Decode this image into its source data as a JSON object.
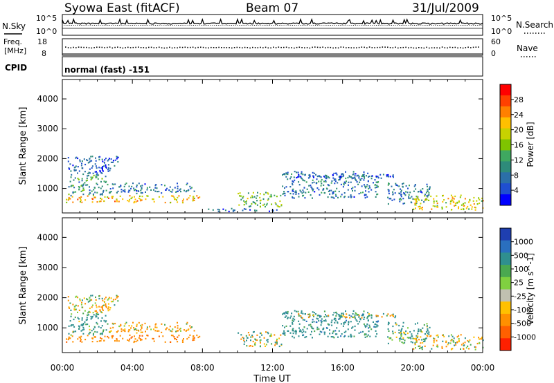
{
  "header": {
    "title": "Syowa East (fitACF)",
    "beam": "Beam 07",
    "date": "31/Jul/2009"
  },
  "top_panels": {
    "nsky_label": "N.Sky",
    "nsearch_label": "N.Search",
    "nsky_ticks": [
      "10^5",
      "10^0"
    ],
    "nsearch_ticks": [
      "10^5",
      "10^0"
    ],
    "freq_label_1": "Freq.",
    "freq_label_2": "[MHz]",
    "freq_ticks": [
      "18",
      "8"
    ],
    "nave_label": "Nave",
    "nave_ticks": [
      "60",
      "0"
    ],
    "cpid_label": "CPID",
    "cpid_value": "normal (fast) -151"
  },
  "chart_data": [
    {
      "type": "heatmap",
      "name": "power",
      "xlabel": "",
      "ylabel": "Slant Range [km]",
      "y_ticks": [
        "1000",
        "2000",
        "3000",
        "4000"
      ],
      "ylim": [
        180,
        4650
      ],
      "xlim_hours": [
        0,
        24
      ],
      "colorbar_label": "Power [dB]",
      "colorbar_ticks": [
        "28",
        "24",
        "20",
        "16",
        "12",
        "8",
        "4"
      ],
      "colorbar_colors": [
        "#ff0000",
        "#ff4000",
        "#ff8000",
        "#ffc000",
        "#c8d200",
        "#7fc400",
        "#3fa860",
        "#2e8b7a",
        "#2b6fa8",
        "#1f4fd0",
        "#0000ff"
      ],
      "clusters": [
        {
          "t": [
            0.2,
            7.8
          ],
          "r": [
            550,
            780
          ],
          "level": 22
        },
        {
          "t": [
            0.3,
            2.5
          ],
          "r": [
            780,
            1500
          ],
          "level": 12
        },
        {
          "t": [
            0.2,
            3.2
          ],
          "r": [
            1500,
            2100
          ],
          "level": 8
        },
        {
          "t": [
            2.5,
            7.5
          ],
          "r": [
            850,
            1200
          ],
          "level": 10
        },
        {
          "t": [
            8.0,
            12.5
          ],
          "r": [
            250,
            350
          ],
          "level": 8
        },
        {
          "t": [
            10.0,
            12.5
          ],
          "r": [
            400,
            900
          ],
          "level": 16
        },
        {
          "t": [
            12.5,
            18.0
          ],
          "r": [
            700,
            1600
          ],
          "level": 10
        },
        {
          "t": [
            13.0,
            19.0
          ],
          "r": [
            1350,
            1500
          ],
          "level": 8
        },
        {
          "t": [
            18.5,
            21.0
          ],
          "r": [
            500,
            1200
          ],
          "level": 10
        },
        {
          "t": [
            20.0,
            24.0
          ],
          "r": [
            300,
            800
          ],
          "level": 20
        }
      ]
    },
    {
      "type": "heatmap",
      "name": "velocity",
      "xlabel": "Time UT",
      "ylabel": "Slant Range [km]",
      "x_ticks": [
        "00:00",
        "04:00",
        "08:00",
        "12:00",
        "16:00",
        "20:00",
        "00:00"
      ],
      "y_ticks": [
        "1000",
        "2000",
        "3000",
        "4000"
      ],
      "ylim": [
        180,
        4650
      ],
      "xlim_hours": [
        0,
        24
      ],
      "colorbar_label": "Velocity [m s^-1]",
      "colorbar_ticks": [
        "1000",
        "500",
        "100",
        "25",
        "-25",
        "-100",
        "-500",
        "-1000"
      ],
      "colorbar_colors": [
        "#1f3fb0",
        "#2a6fbf",
        "#2f8f8f",
        "#4aa850",
        "#80d040",
        "#c0c0b0",
        "#ffc000",
        "#ff9000",
        "#ff6000",
        "#ff2000"
      ],
      "clusters": [
        {
          "t": [
            0.2,
            7.8
          ],
          "r": [
            550,
            780
          ],
          "level": -400
        },
        {
          "t": [
            0.3,
            2.5
          ],
          "r": [
            780,
            1500
          ],
          "level": 200
        },
        {
          "t": [
            0.2,
            3.2
          ],
          "r": [
            1500,
            2100
          ],
          "level": -80
        },
        {
          "t": [
            2.5,
            7.5
          ],
          "r": [
            850,
            1200
          ],
          "level": -150
        },
        {
          "t": [
            10.0,
            12.5
          ],
          "r": [
            400,
            900
          ],
          "level": 10
        },
        {
          "t": [
            12.5,
            18.0
          ],
          "r": [
            700,
            1600
          ],
          "level": 300
        },
        {
          "t": [
            13.0,
            19.0
          ],
          "r": [
            1350,
            1500
          ],
          "level": 0
        },
        {
          "t": [
            18.5,
            21.0
          ],
          "r": [
            500,
            1200
          ],
          "level": 150
        },
        {
          "t": [
            20.0,
            24.0
          ],
          "r": [
            300,
            800
          ],
          "level": -60
        }
      ]
    }
  ]
}
